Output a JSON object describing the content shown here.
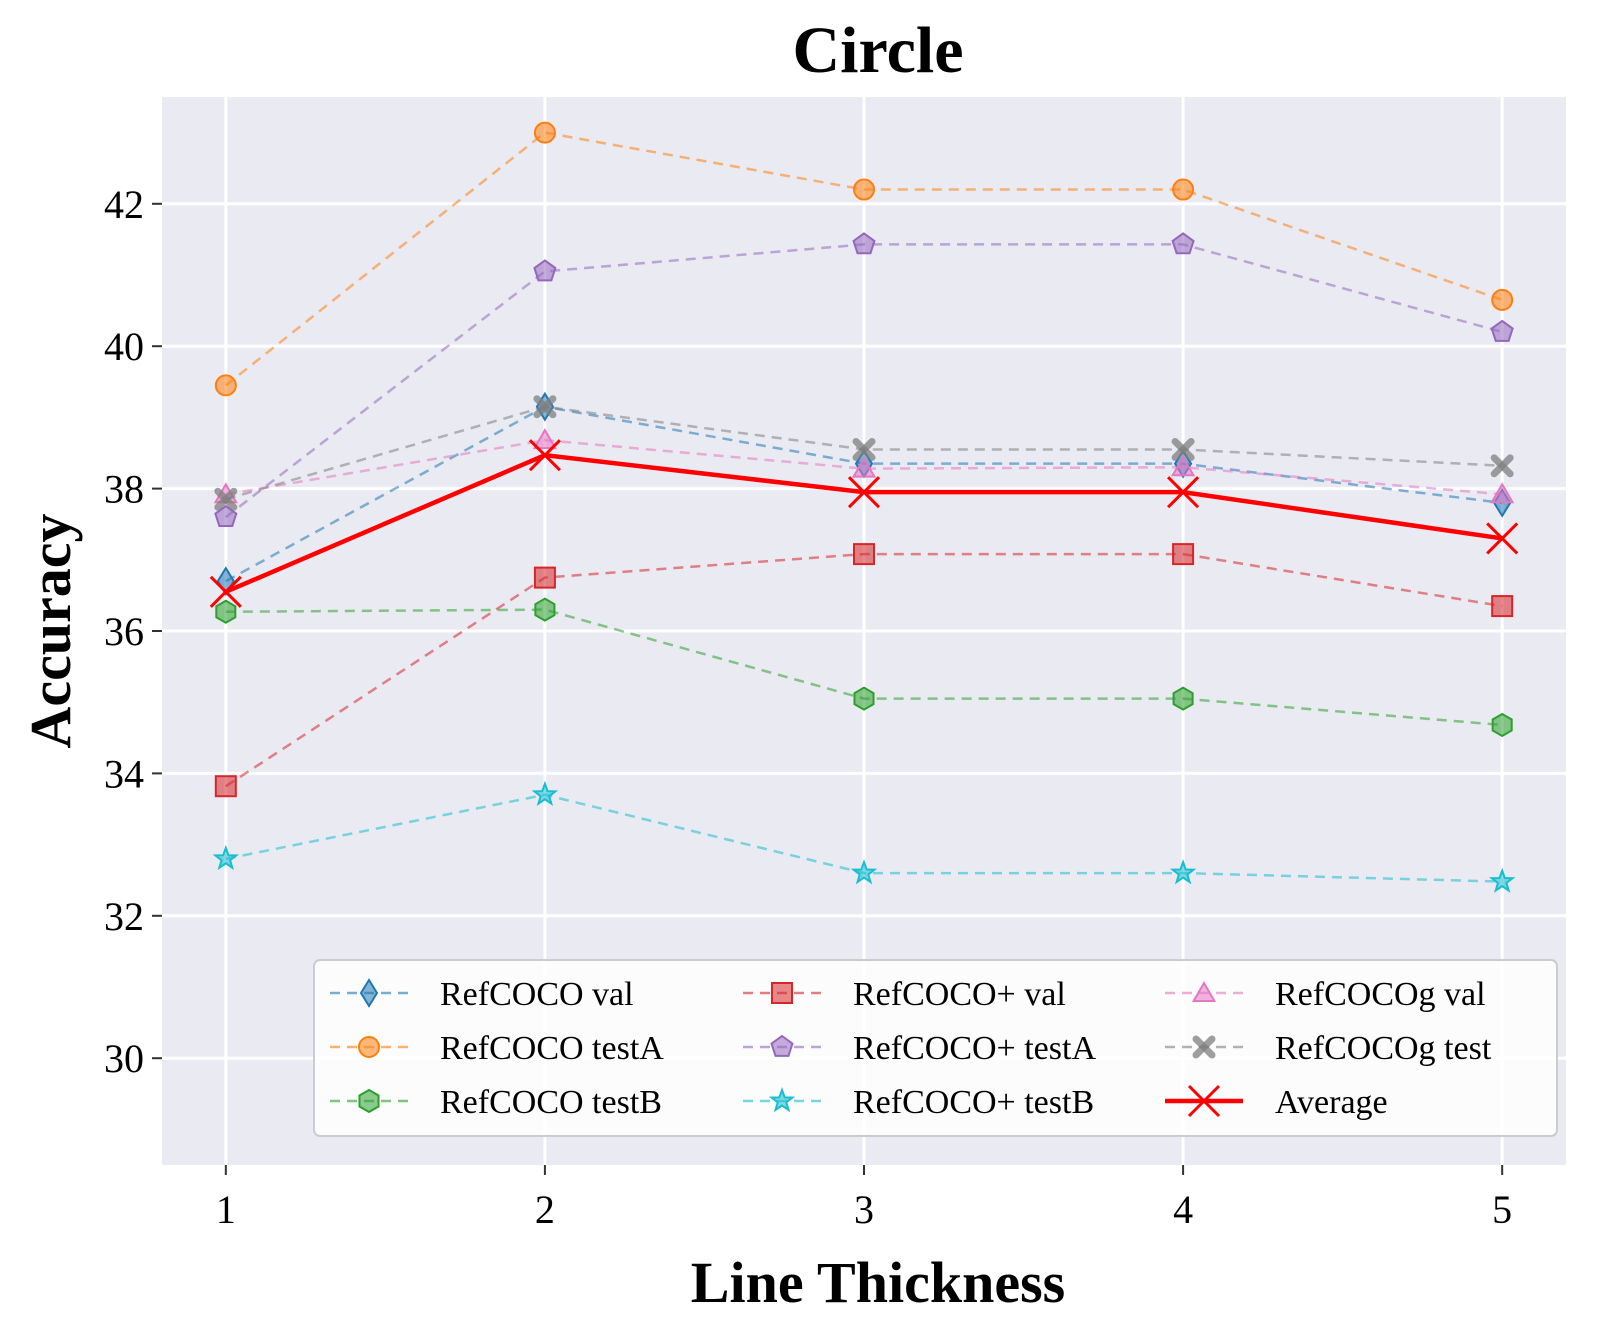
{
  "chart_data": {
    "type": "line",
    "title": "Circle",
    "xlabel": "Line Thickness",
    "ylabel": "Accuracy",
    "x": [
      1,
      2,
      3,
      4,
      5
    ],
    "xlim": [
      0.8,
      5.2
    ],
    "ylim": [
      28.5,
      43.5
    ],
    "xticks": [
      "1",
      "2",
      "3",
      "4",
      "5"
    ],
    "yticks": [
      30,
      32,
      34,
      36,
      38,
      40,
      42
    ],
    "grid": true,
    "legend_position": "lower-right",
    "series": [
      {
        "name": "RefCOCO val",
        "color": "#1f77b4",
        "marker": "diamond",
        "style": "dashed",
        "values": [
          36.7,
          39.15,
          38.35,
          38.35,
          37.8
        ]
      },
      {
        "name": "RefCOCO testA",
        "color": "#ff7f0e",
        "marker": "circle",
        "style": "dashed",
        "values": [
          39.45,
          43.0,
          42.2,
          42.2,
          40.65
        ]
      },
      {
        "name": "RefCOCO testB",
        "color": "#2ca02c",
        "marker": "hexagon",
        "style": "dashed",
        "values": [
          36.27,
          36.3,
          35.05,
          35.05,
          34.68
        ]
      },
      {
        "name": "RefCOCO+ val",
        "color": "#d62728",
        "marker": "square",
        "style": "dashed",
        "values": [
          33.82,
          36.75,
          37.08,
          37.08,
          36.35
        ]
      },
      {
        "name": "RefCOCO+ testA",
        "color": "#9467bd",
        "marker": "pentagon",
        "style": "dashed",
        "values": [
          37.6,
          41.05,
          41.43,
          41.43,
          40.2
        ]
      },
      {
        "name": "RefCOCO+ testB",
        "color": "#17becf",
        "marker": "star",
        "style": "dashed",
        "values": [
          32.8,
          33.7,
          32.6,
          32.6,
          32.48
        ]
      },
      {
        "name": "RefCOCOg val",
        "color": "#e377c2",
        "marker": "triangle",
        "style": "dashed",
        "values": [
          37.92,
          38.68,
          38.28,
          38.3,
          37.92
        ]
      },
      {
        "name": "RefCOCOg test",
        "color": "#7f7f7f",
        "marker": "x-filled",
        "style": "dashed",
        "values": [
          37.85,
          39.15,
          38.55,
          38.55,
          38.32
        ]
      },
      {
        "name": "Average",
        "color": "#ff0000",
        "marker": "x",
        "style": "solid",
        "values": [
          36.55,
          38.47,
          37.95,
          37.95,
          37.3
        ]
      }
    ]
  }
}
